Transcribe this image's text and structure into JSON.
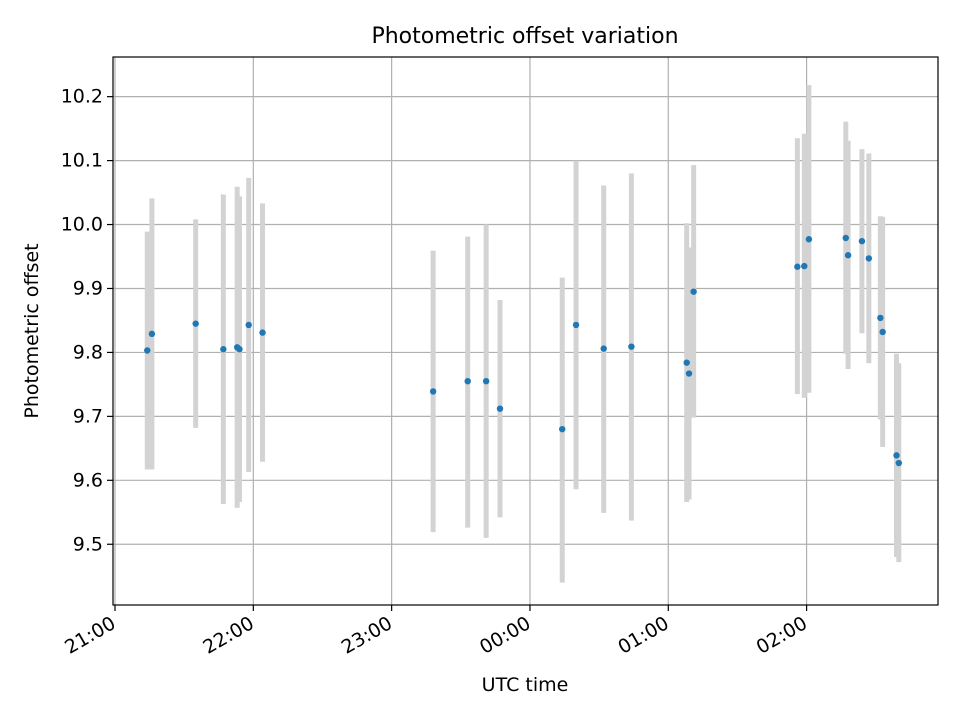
{
  "chart_data": {
    "type": "scatter",
    "title": "Photometric offset variation",
    "xlabel": "UTC time",
    "ylabel": "Photometric offset",
    "grid": true,
    "x_ticks": [
      "21:00",
      "22:00",
      "23:00",
      "00:00",
      "01:00",
      "02:00"
    ],
    "y_ticks": [
      "9.5",
      "9.6",
      "9.7",
      "9.8",
      "9.9",
      "10.0",
      "10.1",
      "10.2"
    ],
    "xlim": [
      "21:00",
      "02:57"
    ],
    "ylim": [
      9.405,
      10.262
    ],
    "colors": {
      "point": "#1f77b4",
      "errorbar": "#d3d3d3",
      "grid": "#b0b0b0"
    },
    "series": [
      {
        "points": [
          {
            "x": "21:14",
            "y": 9.803,
            "ylo": 9.617,
            "yhi": 9.989
          },
          {
            "x": "21:16",
            "y": 9.829,
            "ylo": 9.617,
            "yhi": 10.041
          },
          {
            "x": "21:35",
            "y": 9.845,
            "ylo": 9.682,
            "yhi": 10.008
          },
          {
            "x": "21:47",
            "y": 9.805,
            "ylo": 9.563,
            "yhi": 10.047
          },
          {
            "x": "21:53",
            "y": 9.808,
            "ylo": 9.557,
            "yhi": 10.059
          },
          {
            "x": "21:54",
            "y": 9.805,
            "ylo": 9.566,
            "yhi": 10.044
          },
          {
            "x": "21:58",
            "y": 9.843,
            "ylo": 9.613,
            "yhi": 10.073
          },
          {
            "x": "22:04",
            "y": 9.831,
            "ylo": 9.629,
            "yhi": 10.033
          },
          {
            "x": "23:18",
            "y": 9.739,
            "ylo": 9.519,
            "yhi": 9.959
          },
          {
            "x": "23:33",
            "y": 9.755,
            "ylo": 9.526,
            "yhi": 9.981
          },
          {
            "x": "23:41",
            "y": 9.755,
            "ylo": 9.51,
            "yhi": 10.0
          },
          {
            "x": "23:47",
            "y": 9.712,
            "ylo": 9.542,
            "yhi": 9.882
          },
          {
            "x": "00:14",
            "y": 9.68,
            "ylo": 9.44,
            "yhi": 9.917
          },
          {
            "x": "00:20",
            "y": 9.843,
            "ylo": 9.586,
            "yhi": 10.1
          },
          {
            "x": "00:32",
            "y": 9.806,
            "ylo": 9.549,
            "yhi": 10.061
          },
          {
            "x": "00:44",
            "y": 9.809,
            "ylo": 9.537,
            "yhi": 10.08
          },
          {
            "x": "01:08",
            "y": 9.784,
            "ylo": 9.566,
            "yhi": 10.002
          },
          {
            "x": "01:09",
            "y": 9.767,
            "ylo": 9.57,
            "yhi": 9.964
          },
          {
            "x": "01:11",
            "y": 9.895,
            "ylo": 9.698,
            "yhi": 10.093
          },
          {
            "x": "01:56",
            "y": 9.934,
            "ylo": 9.735,
            "yhi": 10.135
          },
          {
            "x": "01:59",
            "y": 9.935,
            "ylo": 9.729,
            "yhi": 10.142
          },
          {
            "x": "02:01",
            "y": 9.977,
            "ylo": 9.737,
            "yhi": 10.218
          },
          {
            "x": "02:17",
            "y": 9.979,
            "ylo": 9.798,
            "yhi": 10.161
          },
          {
            "x": "02:18",
            "y": 9.952,
            "ylo": 9.774,
            "yhi": 10.131
          },
          {
            "x": "02:24",
            "y": 9.974,
            "ylo": 9.83,
            "yhi": 10.118
          },
          {
            "x": "02:27",
            "y": 9.947,
            "ylo": 9.783,
            "yhi": 10.111
          },
          {
            "x": "02:32",
            "y": 9.854,
            "ylo": 9.695,
            "yhi": 10.013
          },
          {
            "x": "02:33",
            "y": 9.832,
            "ylo": 9.652,
            "yhi": 10.012
          },
          {
            "x": "02:39",
            "y": 9.639,
            "ylo": 9.48,
            "yhi": 9.798
          },
          {
            "x": "02:40",
            "y": 9.627,
            "ylo": 9.472,
            "yhi": 9.783
          }
        ]
      }
    ]
  }
}
